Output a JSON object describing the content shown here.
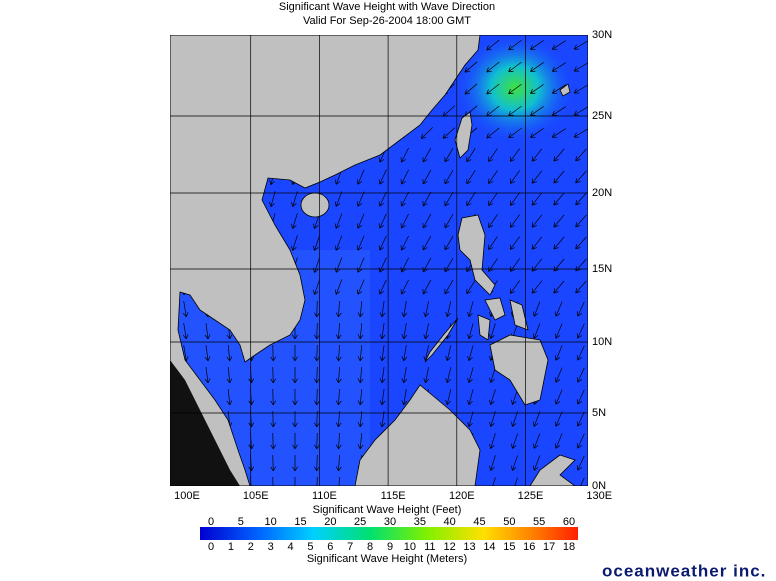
{
  "map": {
    "title": "Significant Wave Height with Wave Direction",
    "subtitle": "Valid For Sep-26-2004 18:00 GMT",
    "lat_labels": [
      "30N",
      "25N",
      "20N",
      "15N",
      "10N",
      "5N",
      "0N"
    ],
    "lon_labels": [
      "100E",
      "105E",
      "110E",
      "115E",
      "120E",
      "125E",
      "130E"
    ],
    "legend": {
      "feet_label": "Significant Wave Height (Feet)",
      "feet_ticks": [
        0,
        5,
        10,
        15,
        20,
        25,
        30,
        35,
        40,
        45,
        50,
        55,
        60
      ],
      "meters_label": "Significant Wave Height (Meters)",
      "meters_ticks": [
        0,
        1,
        2,
        3,
        4,
        5,
        6,
        7,
        8,
        9,
        10,
        11,
        12,
        13,
        14,
        15,
        16,
        17,
        18
      ]
    },
    "brand": "oceanweather inc."
  }
}
